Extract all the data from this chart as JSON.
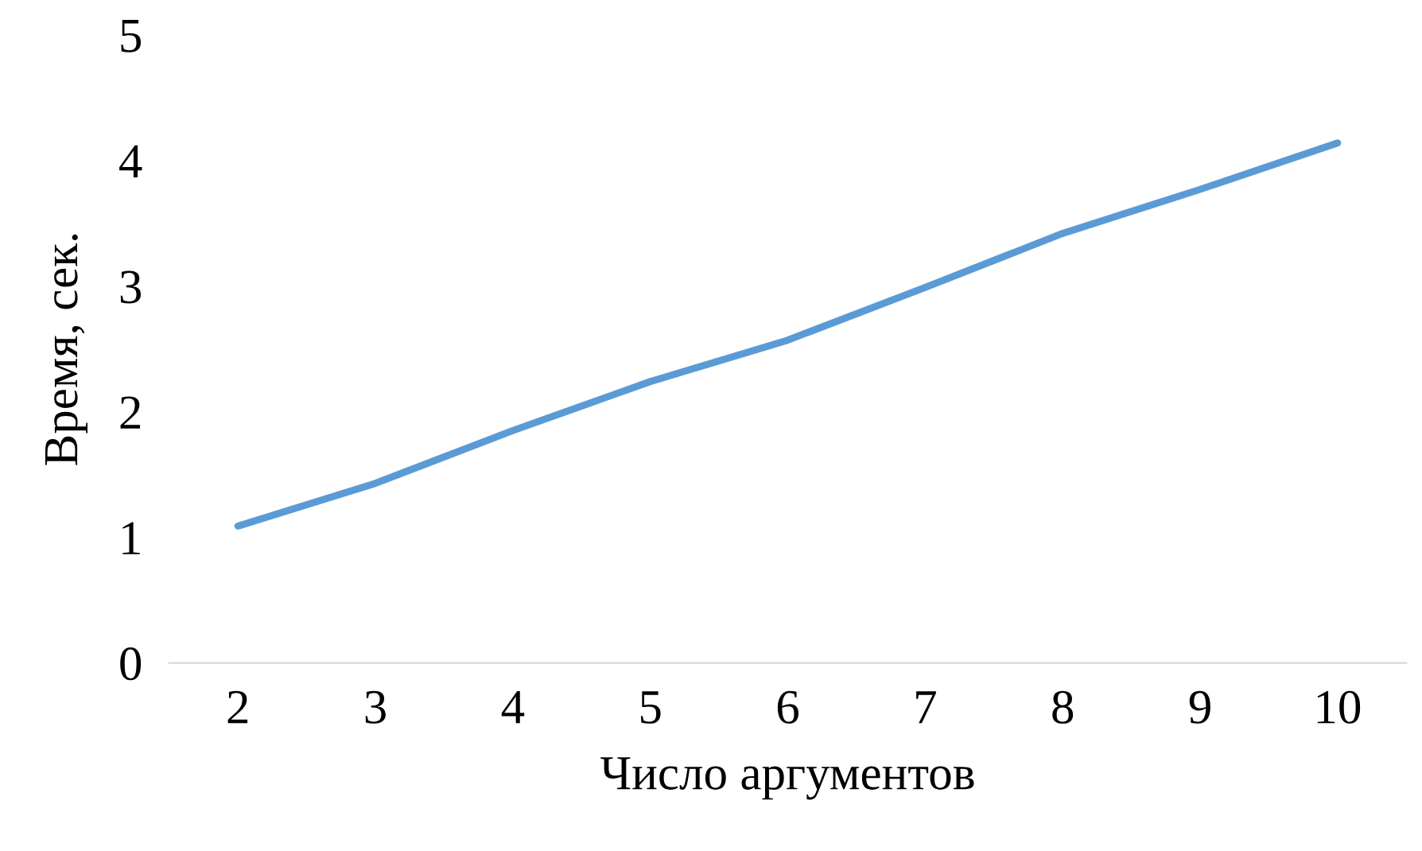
{
  "chart_data": {
    "type": "line",
    "xlabel": "Число аргументов",
    "ylabel": "Время, сек.",
    "categories": [
      "2",
      "3",
      "4",
      "5",
      "6",
      "7",
      "8",
      "9",
      "10"
    ],
    "series": [
      {
        "color": "#5b9bd5",
        "values": [
          1.09,
          1.43,
          1.85,
          2.24,
          2.57,
          2.99,
          3.42,
          3.77,
          4.14
        ]
      }
    ],
    "ylim": [
      0,
      5
    ],
    "yticks": [
      0,
      1,
      2,
      3,
      4,
      5
    ],
    "grid": false,
    "legend": false,
    "marker": "none",
    "line_style": "solid"
  }
}
